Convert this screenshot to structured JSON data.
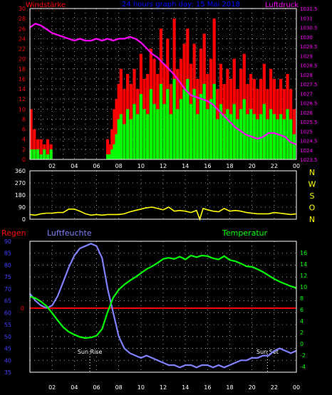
{
  "header": {
    "left_label": "Windstärke",
    "title": "24 hours graph day: 15 Mai 2018",
    "right_label": "Luftdruck"
  },
  "colors": {
    "background": "#000000",
    "frame": "#ffffff",
    "grid": "#c8c8c8",
    "wind_speed": "#ff0000",
    "wind_avg": "#00ff00",
    "pressure": "#ff00ff",
    "direction": "#ffff00",
    "humidity": "#8080ff",
    "temperature": "#00ff00",
    "rain": "#ff0000",
    "left_ticks": "#ff0000",
    "pressure_ticks": "#ff00ff",
    "humidity_ticks": "#4040ff",
    "temp_ticks": "#00ff00",
    "time_ticks": "#ffffff",
    "title": "#0000ff",
    "compass": "#ffff00"
  },
  "time_axis_labels": [
    "02",
    "04",
    "06",
    "08",
    "10",
    "12",
    "14",
    "16",
    "18",
    "20",
    "22",
    "00"
  ],
  "chart_data": [
    {
      "type": "bar",
      "name": "wind",
      "ylabel": "Windstärke",
      "ylim": [
        0,
        30
      ],
      "y_ticks": [
        0,
        2,
        4,
        6,
        8,
        10,
        12,
        14,
        16,
        18,
        20,
        22,
        24,
        26,
        28,
        30
      ],
      "y2label": "Luftdruck",
      "y2lim": [
        1023.5,
        1031.5
      ],
      "y2_ticks": [
        "1023.5",
        "1024",
        "1024.5",
        "1025",
        "1025.5",
        "1026",
        "1026.5",
        "1027",
        "1027.5",
        "1028",
        "1028.5",
        "1029",
        "1029.5",
        "1030",
        "1030.5",
        "1031",
        "1031.5"
      ],
      "x_range_hours": [
        0,
        24
      ],
      "series": [
        {
          "role": "gust",
          "hours": [
            0.1,
            0.4,
            0.7,
            1.0,
            1.3,
            1.6,
            1.9,
            6.8,
            7.0,
            7.2,
            7.4,
            7.6,
            7.8,
            8.0,
            8.2,
            8.5,
            8.8,
            9.1,
            9.4,
            9.7,
            10.0,
            10.3,
            10.6,
            10.9,
            11.2,
            11.5,
            11.8,
            12.1,
            12.4,
            12.7,
            13.0,
            13.3,
            13.6,
            13.9,
            14.2,
            14.5,
            14.8,
            15.1,
            15.4,
            15.7,
            16.0,
            16.3,
            16.6,
            16.9,
            17.2,
            17.5,
            17.8,
            18.1,
            18.4,
            18.7,
            19.0,
            19.3,
            19.6,
            19.9,
            20.2,
            20.5,
            20.8,
            21.1,
            21.4,
            21.7,
            22.0,
            22.3,
            22.6,
            22.9,
            23.2,
            23.5,
            23.8
          ],
          "values": [
            10,
            6,
            4,
            4,
            3,
            4,
            3,
            0,
            4,
            3,
            6,
            10,
            12,
            15,
            18,
            14,
            17,
            15,
            18,
            14,
            21,
            16,
            17,
            22,
            20,
            17,
            26,
            19,
            24,
            15,
            28,
            18,
            20,
            23,
            26,
            19,
            23,
            16,
            22,
            25,
            17,
            20,
            28,
            14,
            19,
            15,
            18,
            16,
            20,
            14,
            18,
            21,
            15,
            17,
            16,
            14,
            16,
            19,
            14,
            18,
            16,
            14,
            16,
            14,
            17,
            14,
            10
          ]
        },
        {
          "role": "average",
          "hours": [
            0.1,
            0.4,
            0.7,
            1.0,
            1.3,
            1.6,
            1.9,
            6.8,
            7.0,
            7.2,
            7.4,
            7.6,
            7.8,
            8.0,
            8.2,
            8.5,
            8.8,
            9.1,
            9.4,
            9.7,
            10.0,
            10.3,
            10.6,
            10.9,
            11.2,
            11.5,
            11.8,
            12.1,
            12.4,
            12.7,
            13.0,
            13.3,
            13.6,
            13.9,
            14.2,
            14.5,
            14.8,
            15.1,
            15.4,
            15.7,
            16.0,
            16.3,
            16.6,
            16.9,
            17.2,
            17.5,
            17.8,
            18.1,
            18.4,
            18.7,
            19.0,
            19.3,
            19.6,
            19.9,
            20.2,
            20.5,
            20.8,
            21.1,
            21.4,
            21.7,
            22.0,
            22.3,
            22.6,
            22.9,
            23.2,
            23.5,
            23.8
          ],
          "values": [
            2,
            2,
            2,
            1,
            2,
            1,
            2,
            0,
            1,
            1,
            2,
            3,
            5,
            8,
            9,
            7,
            10,
            8,
            11,
            9,
            13,
            10,
            9,
            14,
            11,
            10,
            15,
            11,
            14,
            9,
            16,
            10,
            12,
            14,
            16,
            11,
            14,
            9,
            13,
            15,
            10,
            12,
            15,
            8,
            11,
            9,
            10,
            9,
            11,
            8,
            10,
            12,
            9,
            10,
            9,
            8,
            9,
            11,
            8,
            10,
            9,
            8,
            9,
            8,
            10,
            8,
            5
          ]
        },
        {
          "role": "pressure",
          "hours": [
            0,
            0.5,
            1,
            1.5,
            2,
            2.5,
            3,
            3.5,
            4,
            4.5,
            5,
            5.5,
            6,
            6.5,
            7,
            7.5,
            8,
            8.5,
            9,
            9.5,
            10,
            10.5,
            11,
            11.5,
            12,
            12.5,
            13,
            13.5,
            14,
            14.5,
            15,
            15.5,
            16,
            16.5,
            17,
            17.5,
            18,
            18.5,
            19,
            19.5,
            20,
            20.5,
            21,
            21.5,
            22,
            22.5,
            23,
            23.5,
            24
          ],
          "values": [
            1030.5,
            1030.7,
            1030.6,
            1030.4,
            1030.2,
            1030.1,
            1030.0,
            1029.9,
            1029.8,
            1029.9,
            1029.8,
            1029.8,
            1029.9,
            1029.8,
            1029.9,
            1029.8,
            1029.9,
            1029.9,
            1030.0,
            1029.9,
            1029.7,
            1029.4,
            1029.1,
            1028.9,
            1028.6,
            1028.3,
            1028.0,
            1027.6,
            1027.2,
            1026.9,
            1026.8,
            1026.7,
            1026.6,
            1026.4,
            1026.1,
            1025.8,
            1025.5,
            1025.2,
            1025.0,
            1024.8,
            1024.7,
            1024.6,
            1024.7,
            1024.9,
            1024.9,
            1024.8,
            1024.7,
            1024.4,
            1024.3
          ]
        }
      ]
    },
    {
      "type": "line",
      "name": "direction",
      "ylim": [
        0,
        360
      ],
      "y_ticks": [
        0,
        90,
        180,
        270,
        360
      ],
      "compass_labels": [
        "N",
        "W",
        "S",
        "O",
        "N"
      ],
      "x_range_hours": [
        0,
        24
      ],
      "series": [
        {
          "hours": [
            0,
            0.5,
            1,
            1.5,
            2,
            2.5,
            3,
            3.5,
            4,
            4.5,
            5,
            5.5,
            6,
            6.5,
            7,
            7.5,
            8,
            8.5,
            9,
            9.5,
            10,
            10.5,
            11,
            11.5,
            12,
            12.5,
            13,
            13.5,
            14,
            14.5,
            15,
            15.3,
            15.6,
            16,
            16.5,
            17,
            17.5,
            18,
            18.5,
            19,
            19.5,
            20,
            20.5,
            21,
            21.5,
            22,
            22.5,
            23,
            23.5,
            24
          ],
          "values": [
            35,
            30,
            40,
            45,
            45,
            50,
            50,
            75,
            75,
            60,
            40,
            30,
            35,
            30,
            35,
            35,
            35,
            40,
            55,
            65,
            75,
            85,
            90,
            80,
            70,
            90,
            60,
            65,
            60,
            50,
            65,
            0,
            80,
            70,
            60,
            55,
            80,
            60,
            65,
            60,
            50,
            45,
            40,
            40,
            40,
            50,
            45,
            40,
            35,
            40
          ]
        }
      ]
    },
    {
      "type": "line",
      "name": "humidity-temperature",
      "legend": [
        "Regen",
        "Luftfeuchte",
        "Temperatur"
      ],
      "ylim": [
        35,
        90
      ],
      "y_ticks": [
        35,
        40,
        45,
        50,
        55,
        60,
        65,
        70,
        75,
        80,
        85,
        90
      ],
      "y2lim": [
        -5,
        18
      ],
      "y2_ticks": [
        -4,
        -2,
        0,
        2,
        4,
        6,
        8,
        10,
        12,
        14,
        16
      ],
      "rain_tick": "0",
      "rain_value": 0,
      "annotations": [
        {
          "text": "Sun Rise",
          "hour": 5.4
        },
        {
          "text": "Sun Set",
          "hour": 21.4
        }
      ],
      "x_range_hours": [
        0,
        24
      ],
      "series": [
        {
          "role": "humidity",
          "hours": [
            0,
            0.5,
            1,
            1.5,
            2,
            2.5,
            3,
            3.5,
            4,
            4.5,
            5,
            5.5,
            6,
            6.5,
            7,
            7.5,
            8,
            8.5,
            9,
            9.5,
            10,
            10.5,
            11,
            11.5,
            12,
            12.5,
            13,
            13.5,
            14,
            14.5,
            15,
            15.5,
            16,
            16.5,
            17,
            17.5,
            18,
            18.5,
            19,
            19.5,
            20,
            20.5,
            21,
            21.5,
            22,
            22.5,
            23,
            23.5,
            24
          ],
          "values": [
            68,
            65,
            63,
            62,
            63,
            67,
            73,
            79,
            84,
            87,
            88,
            89,
            88,
            83,
            70,
            60,
            50,
            45,
            43,
            42,
            41,
            42,
            41,
            40,
            39,
            38,
            38,
            37,
            38,
            38,
            37,
            38,
            38,
            37,
            38,
            37,
            38,
            39,
            40,
            40,
            41,
            41,
            42,
            42,
            44,
            45,
            44,
            43,
            44
          ]
        },
        {
          "role": "temperature",
          "hours": [
            0,
            0.5,
            1,
            1.5,
            2,
            2.5,
            3,
            3.5,
            4,
            4.5,
            5,
            5.5,
            6,
            6.5,
            7,
            7.5,
            8,
            8.5,
            9,
            9.5,
            10,
            10.5,
            11,
            11.5,
            12,
            12.5,
            13,
            13.5,
            14,
            14.5,
            15,
            15.5,
            16,
            16.5,
            17,
            17.5,
            18,
            18.5,
            19,
            19.5,
            20,
            20.5,
            21,
            21.5,
            22,
            22.5,
            23,
            23.5,
            24
          ],
          "values": [
            8.3,
            8.0,
            7.4,
            6.6,
            5.4,
            4.1,
            2.9,
            2.1,
            1.6,
            1.2,
            1.0,
            1.1,
            1.4,
            2.6,
            5.6,
            8.1,
            9.5,
            10.4,
            11.1,
            11.7,
            12.4,
            13.1,
            13.6,
            14.2,
            14.9,
            15.1,
            14.9,
            15.3,
            14.8,
            15.5,
            15.2,
            15.5,
            15.4,
            15.0,
            14.8,
            15.4,
            14.7,
            14.5,
            14.1,
            13.6,
            13.5,
            13.1,
            12.6,
            12.0,
            11.4,
            10.9,
            10.5,
            10.1,
            9.8
          ]
        }
      ]
    }
  ]
}
